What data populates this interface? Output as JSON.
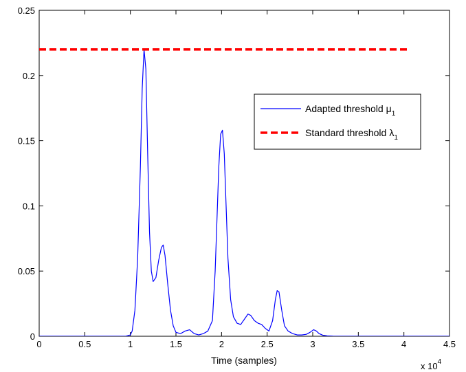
{
  "chart_data": {
    "type": "line",
    "xlabel": "Time (samples)",
    "x_multiplier_label": "x 10",
    "x_multiplier_exponent": "4",
    "xlim": [
      0,
      4.5
    ],
    "ylim": [
      0,
      0.25
    ],
    "xticks": [
      0,
      0.5,
      1,
      1.5,
      2,
      2.5,
      3,
      3.5,
      4,
      4.5
    ],
    "xtick_labels": [
      "0",
      "0.5",
      "1",
      "1.5",
      "2",
      "2.5",
      "3",
      "3.5",
      "4",
      "4.5"
    ],
    "yticks": [
      0,
      0.05,
      0.1,
      0.15,
      0.2,
      0.25
    ],
    "ytick_labels": [
      "0",
      "0.05",
      "0.1",
      "0.15",
      "0.2",
      "0.25"
    ],
    "grid": false,
    "legend_position": "top-right",
    "series": [
      {
        "name": "Adapted threshold",
        "name_symbol": "μ",
        "name_subscript": "1",
        "color": "#0000ff",
        "style": "solid",
        "x": [
          0,
          0.95,
          1.0,
          1.02,
          1.05,
          1.08,
          1.11,
          1.13,
          1.15,
          1.17,
          1.19,
          1.21,
          1.23,
          1.25,
          1.28,
          1.31,
          1.34,
          1.36,
          1.38,
          1.41,
          1.44,
          1.47,
          1.5,
          1.55,
          1.6,
          1.65,
          1.7,
          1.75,
          1.8,
          1.85,
          1.9,
          1.93,
          1.95,
          1.97,
          1.99,
          2.01,
          2.03,
          2.05,
          2.07,
          2.1,
          2.13,
          2.17,
          2.21,
          2.25,
          2.29,
          2.32,
          2.36,
          2.4,
          2.44,
          2.48,
          2.52,
          2.56,
          2.59,
          2.61,
          2.63,
          2.66,
          2.69,
          2.73,
          2.78,
          2.83,
          2.88,
          2.93,
          2.97,
          3.01,
          3.04,
          3.07,
          3.11,
          3.16,
          3.22,
          3.3,
          3.5,
          4.0,
          4.5
        ],
        "y": [
          0,
          0,
          0.001,
          0.004,
          0.02,
          0.06,
          0.13,
          0.19,
          0.22,
          0.205,
          0.14,
          0.08,
          0.05,
          0.042,
          0.045,
          0.058,
          0.068,
          0.07,
          0.062,
          0.04,
          0.02,
          0.008,
          0.003,
          0.002,
          0.004,
          0.005,
          0.002,
          0.001,
          0.002,
          0.004,
          0.012,
          0.05,
          0.09,
          0.13,
          0.155,
          0.158,
          0.14,
          0.1,
          0.06,
          0.028,
          0.015,
          0.01,
          0.009,
          0.013,
          0.017,
          0.016,
          0.012,
          0.01,
          0.009,
          0.006,
          0.004,
          0.012,
          0.028,
          0.035,
          0.034,
          0.02,
          0.008,
          0.004,
          0.002,
          0.001,
          0.001,
          0.0015,
          0.003,
          0.005,
          0.004,
          0.002,
          0.0008,
          0.0003,
          0.0001,
          0,
          0,
          0,
          0
        ]
      },
      {
        "name": "Standard threshold",
        "name_symbol": "λ",
        "name_subscript": "1",
        "color": "#ff0000",
        "style": "dashed",
        "x": [
          0,
          4.05
        ],
        "y": [
          0.22,
          0.22
        ]
      }
    ]
  }
}
